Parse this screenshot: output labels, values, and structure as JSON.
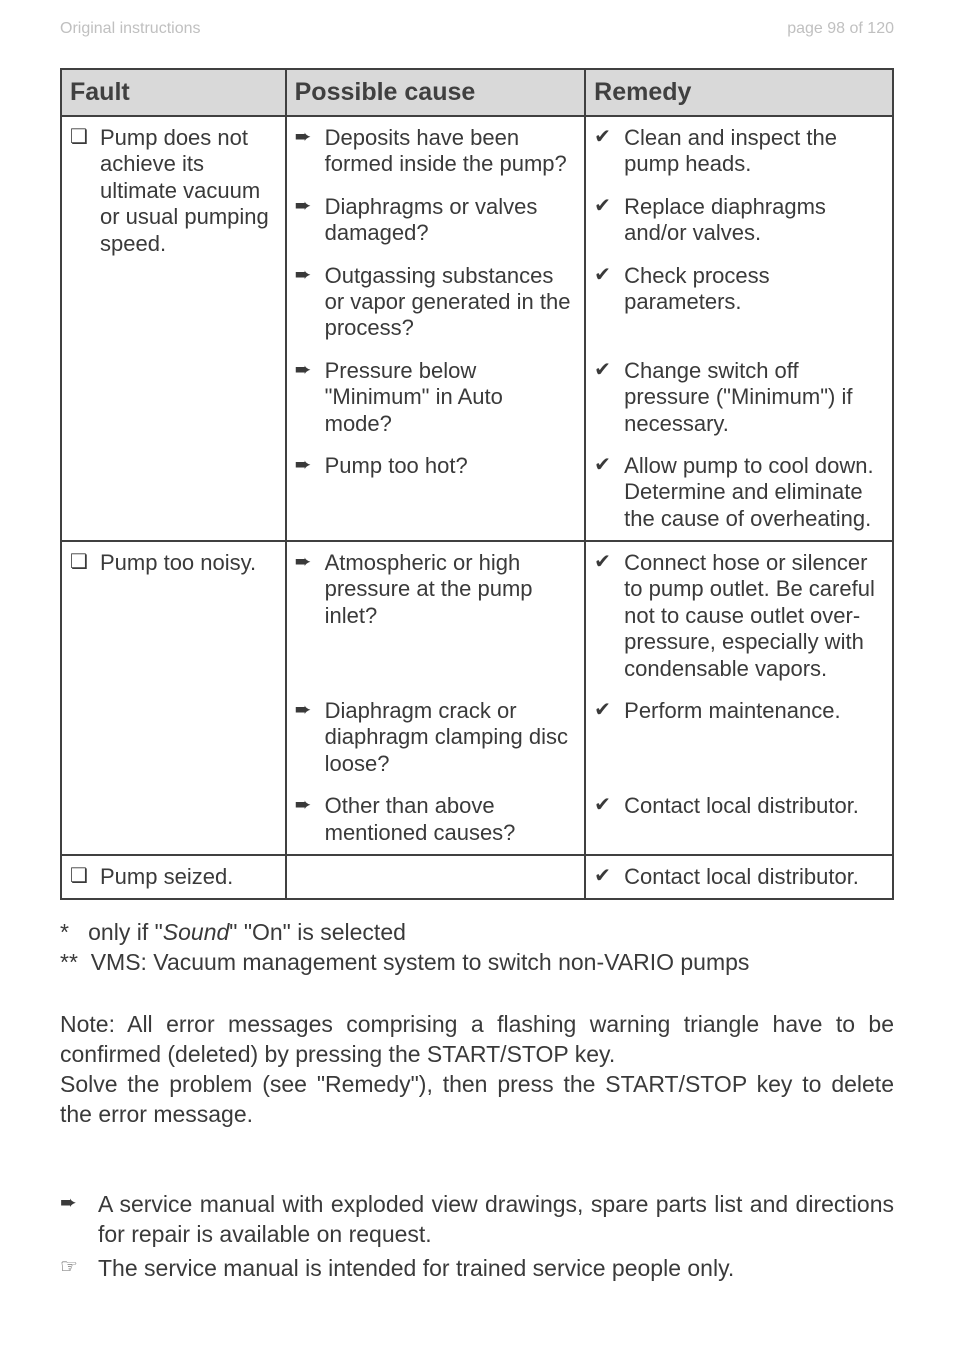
{
  "header": {
    "left": "Original instructions",
    "right": "page 98 of 120"
  },
  "table": {
    "headers": {
      "fault": "Fault",
      "cause": "Possible cause",
      "remedy": "Remedy"
    },
    "rows": [
      {
        "fault_marker": "❏",
        "fault": "Pump does not achieve its ultimate vacuum or usual pumping speed.",
        "fault_rowspan": 5,
        "cause_marker": "➨",
        "cause": "Deposits have been formed inside the pump?",
        "remedy_marker": "✔",
        "remedy": "Clean and inspect the pump heads."
      },
      {
        "cause_marker": "➨",
        "cause": "Diaphragms or valves damaged?",
        "remedy_marker": "✔",
        "remedy": "Replace diaphragms and/or valves."
      },
      {
        "cause_marker": "➨",
        "cause": "Outgassing substances or vapor generated in the process?",
        "remedy_marker": "✔",
        "remedy": "Check process parameters."
      },
      {
        "cause_marker": "➨",
        "cause": "Pressure below \"Minimum\" in Auto mode?",
        "remedy_marker": "✔",
        "remedy": "Change switch off pressure (\"Minimum\") if necessary."
      },
      {
        "cause_marker": "➨",
        "cause": "Pump too hot?",
        "remedy_marker": "✔",
        "remedy": "Allow pump to cool down. Determine and eliminate the cause of overheating."
      },
      {
        "fault_marker": "❏",
        "fault": "Pump too noisy.",
        "fault_rowspan": 3,
        "cause_marker": "➨",
        "cause": "Atmospheric or high pressure at the pump inlet?",
        "remedy_marker": "✔",
        "remedy": "Connect hose or silencer to pump outlet. Be careful not to cause outlet over-pressure, especially with condensable vapors."
      },
      {
        "cause_marker": "➨",
        "cause": "Diaphragm crack or diaphragm clamping disc loose?",
        "remedy_marker": "✔",
        "remedy": "Perform maintenance."
      },
      {
        "cause_marker": "➨",
        "cause": "Other than above mentioned causes?",
        "remedy_marker": "✔",
        "remedy": "Contact local distributor."
      },
      {
        "fault_marker": "❏",
        "fault": "Pump seized.",
        "fault_rowspan": 1,
        "cause_marker": "",
        "cause": "",
        "remedy_marker": "✔",
        "remedy": "Contact local distributor."
      }
    ]
  },
  "footnotes": {
    "star": "*",
    "line1a": "only if \"",
    "line1_italic": "Sound",
    "line1b": "\" \"On\"  is selected",
    "dstar": "**",
    "line2": "VMS: Vacuum management system to  switch non-VARIO pumps"
  },
  "note": {
    "p1": "Note: All error messages comprising a flashing warning triangle have to be confirmed (deleted) by pressing the START/STOP key.",
    "p2": "Solve the problem (see \"Remedy\"), then press the START/STOP key to delete the error message."
  },
  "service": [
    {
      "marker": "➨",
      "text": "A service manual with exploded view drawings, spare parts list and directions for repair is available on request."
    },
    {
      "marker": "☞",
      "text": "The service manual is intended for trained service people only."
    }
  ]
}
